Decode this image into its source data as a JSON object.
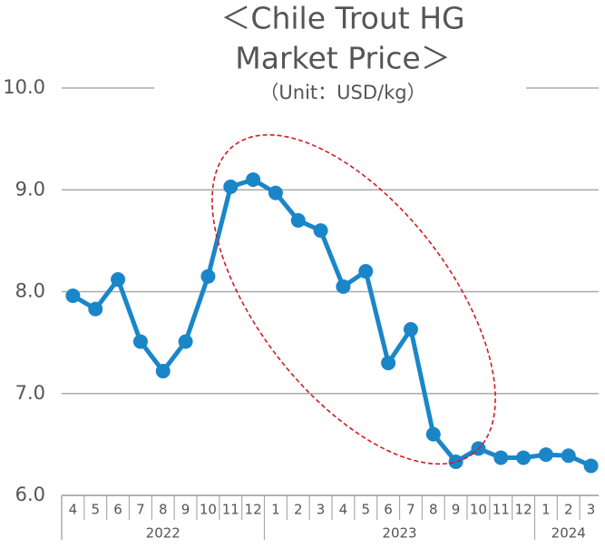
{
  "chart_data": {
    "type": "line",
    "title": [
      "＜Chile Trout HG",
      "Market Price＞"
    ],
    "subtitle": "（Unit：USD/kg）",
    "categories": [
      "4",
      "5",
      "6",
      "7",
      "8",
      "9",
      "10",
      "11",
      "12",
      "1",
      "2",
      "3",
      "4",
      "5",
      "6",
      "7",
      "8",
      "9",
      "10",
      "11",
      "12",
      "1",
      "2",
      "3"
    ],
    "year_labels": [
      "2022",
      "2023",
      "2024"
    ],
    "series": [
      {
        "name": "Chile Trout HG",
        "color": "#1a86c8",
        "values": [
          7.96,
          7.83,
          8.12,
          7.51,
          7.22,
          7.51,
          8.15,
          9.03,
          9.1,
          8.97,
          8.7,
          8.6,
          8.05,
          8.2,
          7.3,
          7.63,
          6.6,
          6.33,
          6.46,
          6.37,
          6.37,
          6.4,
          6.39,
          6.29
        ]
      }
    ],
    "ylim": [
      6,
      10
    ],
    "yticks": [
      {
        "value": 6,
        "label": "6.0"
      },
      {
        "value": 7,
        "label": "7.0"
      },
      {
        "value": 8,
        "label": "8.0"
      },
      {
        "value": 9,
        "label": "9.0"
      },
      {
        "value": 10,
        "label": "10.0"
      }
    ],
    "grid": true
  }
}
